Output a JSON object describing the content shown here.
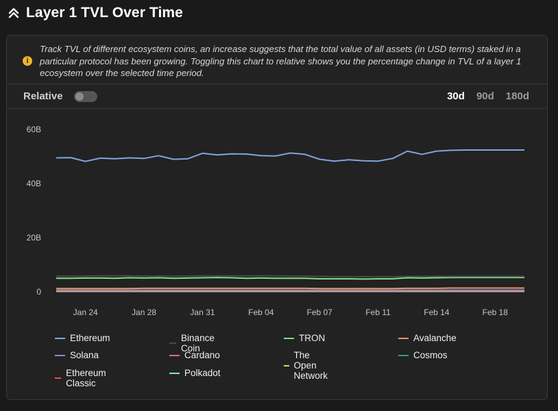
{
  "header": {
    "title": "Layer 1 TVL Over Time",
    "icon": "chevrons-up-icon"
  },
  "info": {
    "icon": "info-icon",
    "text": "Track TVL of different ecosystem coins, an increase suggests that the total value of all assets (in USD terms) staked in a particular protocol has been growing. Toggling this chart to relative shows you the percentage change in TVL of a layer 1 ecosystem over the selected time period."
  },
  "controls": {
    "relative_label": "Relative",
    "relative_on": false,
    "periods": [
      "30d",
      "90d",
      "180d"
    ],
    "active_period": "30d"
  },
  "chart_data": {
    "type": "line",
    "title": "Layer 1 TVL Over Time",
    "xlabel": "",
    "ylabel": "",
    "ylim": [
      0,
      60
    ],
    "y_unit": "B",
    "y_ticks": [
      "0",
      "20B",
      "40B",
      "60B"
    ],
    "y_tick_values": [
      0,
      20,
      40,
      60
    ],
    "x_ticks": [
      "Jan 24",
      "Jan 28",
      "Jan 31",
      "Feb 04",
      "Feb 07",
      "Feb 11",
      "Feb 14",
      "Feb 18"
    ],
    "x_tick_index": [
      2,
      6,
      10,
      14,
      18,
      22,
      26,
      30
    ],
    "n_points": 33,
    "series": [
      {
        "name": "Ethereum",
        "color": "#7fa6de",
        "values": [
          49.5,
          49.6,
          48.2,
          49.4,
          49.2,
          49.5,
          49.3,
          50.3,
          49.0,
          49.2,
          51.2,
          50.6,
          51.0,
          50.9,
          50.3,
          50.2,
          51.3,
          50.8,
          49.0,
          48.3,
          48.8,
          48.4,
          48.3,
          49.3,
          52.0,
          50.8,
          52.0,
          52.3,
          52.4,
          52.4,
          52.4,
          52.4,
          52.4
        ]
      },
      {
        "name": "Binance Coin",
        "color": "#4a4a4a",
        "values": [
          5.8,
          5.8,
          5.8,
          5.9,
          5.9,
          5.9,
          5.8,
          5.8,
          5.8,
          5.8,
          5.9,
          5.9,
          5.9,
          5.9,
          5.9,
          5.9,
          5.8,
          5.8,
          5.7,
          5.6,
          5.6,
          5.6,
          5.6,
          5.6,
          5.7,
          5.7,
          5.7,
          5.7,
          5.7,
          5.7,
          5.7,
          5.7,
          5.7
        ]
      },
      {
        "name": "TRON",
        "color": "#7ee081",
        "values": [
          5.0,
          5.0,
          5.1,
          5.1,
          5.0,
          5.2,
          5.1,
          5.2,
          5.0,
          5.1,
          5.2,
          5.3,
          5.2,
          5.0,
          5.1,
          5.0,
          5.0,
          5.0,
          4.8,
          4.8,
          4.8,
          4.7,
          4.8,
          4.8,
          5.2,
          5.1,
          5.2,
          5.3,
          5.3,
          5.3,
          5.3,
          5.3,
          5.3
        ]
      },
      {
        "name": "Avalanche",
        "color": "#f0965a",
        "values": [
          1.2,
          1.2,
          1.2,
          1.2,
          1.2,
          1.2,
          1.3,
          1.3,
          1.3,
          1.3,
          1.3,
          1.3,
          1.3,
          1.3,
          1.3,
          1.3,
          1.3,
          1.3,
          1.2,
          1.2,
          1.2,
          1.2,
          1.2,
          1.2,
          1.3,
          1.3,
          1.3,
          1.4,
          1.4,
          1.4,
          1.4,
          1.4,
          1.4
        ]
      },
      {
        "name": "Solana",
        "color": "#8a86e6",
        "values": [
          0.6,
          0.6,
          0.6,
          0.6,
          0.6,
          0.6,
          0.6,
          0.6,
          0.6,
          0.6,
          0.6,
          0.6,
          0.6,
          0.6,
          0.6,
          0.6,
          0.6,
          0.6,
          0.6,
          0.6,
          0.6,
          0.6,
          0.6,
          0.6,
          0.6,
          0.6,
          0.6,
          0.6,
          0.6,
          0.6,
          0.6,
          0.6,
          0.6
        ]
      },
      {
        "name": "Cardano",
        "color": "#f06292",
        "values": [
          0.5,
          0.5,
          0.5,
          0.5,
          0.5,
          0.5,
          0.5,
          0.5,
          0.5,
          0.5,
          0.5,
          0.5,
          0.5,
          0.5,
          0.5,
          0.5,
          0.5,
          0.5,
          0.5,
          0.5,
          0.5,
          0.5,
          0.5,
          0.5,
          0.5,
          0.5,
          0.5,
          0.5,
          0.5,
          0.5,
          0.5,
          0.5,
          0.5
        ]
      },
      {
        "name": "The Open Network",
        "color": "#e8d24a",
        "values": [
          0.3,
          0.3,
          0.3,
          0.3,
          0.3,
          0.3,
          0.3,
          0.3,
          0.3,
          0.3,
          0.3,
          0.3,
          0.3,
          0.3,
          0.3,
          0.3,
          0.3,
          0.3,
          0.3,
          0.3,
          0.3,
          0.3,
          0.3,
          0.3,
          0.3,
          0.3,
          0.3,
          0.3,
          0.3,
          0.3,
          0.3,
          0.3,
          0.3
        ]
      },
      {
        "name": "Cosmos",
        "color": "#2a9d8f",
        "values": [
          0.2,
          0.2,
          0.2,
          0.2,
          0.2,
          0.2,
          0.2,
          0.2,
          0.2,
          0.2,
          0.2,
          0.2,
          0.2,
          0.2,
          0.2,
          0.2,
          0.2,
          0.2,
          0.2,
          0.2,
          0.2,
          0.2,
          0.2,
          0.2,
          0.2,
          0.2,
          0.2,
          0.2,
          0.2,
          0.2,
          0.2,
          0.2,
          0.2
        ]
      },
      {
        "name": "Ethereum Classic",
        "color": "#e84f4f",
        "values": [
          0.1,
          0.1,
          0.1,
          0.1,
          0.1,
          0.1,
          0.1,
          0.1,
          0.1,
          0.1,
          0.1,
          0.1,
          0.1,
          0.1,
          0.1,
          0.1,
          0.1,
          0.1,
          0.1,
          0.1,
          0.1,
          0.1,
          0.1,
          0.1,
          0.1,
          0.1,
          0.1,
          0.1,
          0.1,
          0.1,
          0.1,
          0.1,
          0.1
        ]
      },
      {
        "name": "Polkadot",
        "color": "#7fe3e3",
        "values": [
          0.1,
          0.1,
          0.1,
          0.1,
          0.1,
          0.1,
          0.1,
          0.1,
          0.1,
          0.1,
          0.1,
          0.1,
          0.1,
          0.1,
          0.1,
          0.1,
          0.1,
          0.1,
          0.1,
          0.1,
          0.1,
          0.1,
          0.1,
          0.1,
          0.1,
          0.1,
          0.1,
          0.1,
          0.1,
          0.1,
          0.1,
          0.1,
          0.1
        ]
      }
    ]
  }
}
